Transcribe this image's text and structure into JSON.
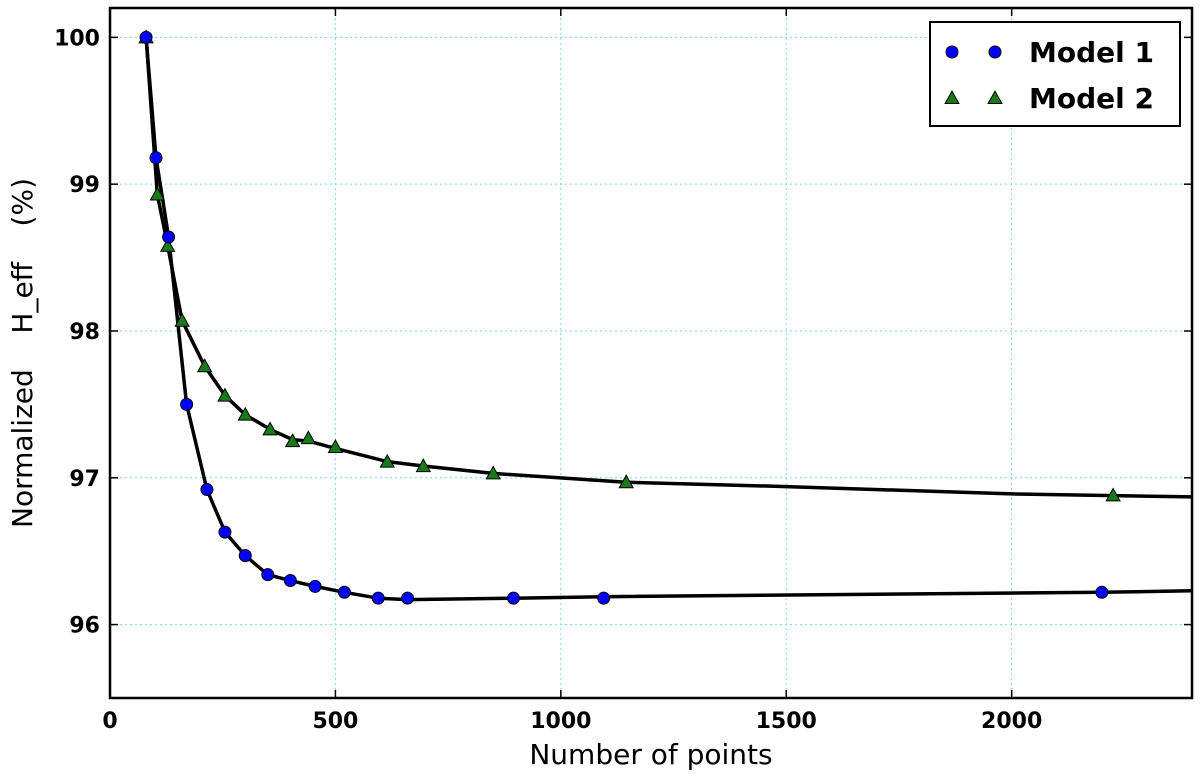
{
  "chart_data": {
    "type": "scatter",
    "xlabel": "Number of points",
    "ylabel": "Normalized    H_eff    (%)",
    "xlim": [
      0,
      2400
    ],
    "ylim": [
      95.5,
      100.2
    ],
    "xticks": [
      0,
      500,
      1000,
      1500,
      2000
    ],
    "yticks": [
      96,
      97,
      98,
      99,
      100
    ],
    "xtick_labels": [
      "0",
      "500",
      "1000",
      "1500",
      "2000"
    ],
    "ytick_labels": [
      "96",
      "97",
      "98",
      "99",
      "100"
    ],
    "grid": true,
    "legend_position": "top-right",
    "series": [
      {
        "name": "Model 1",
        "marker": "circle",
        "color": "#0000ff",
        "points": [
          [
            80,
            100.0
          ],
          [
            102,
            99.18
          ],
          [
            130,
            98.64
          ],
          [
            170,
            97.5
          ],
          [
            215,
            96.92
          ],
          [
            255,
            96.63
          ],
          [
            300,
            96.47
          ],
          [
            350,
            96.34
          ],
          [
            400,
            96.3
          ],
          [
            455,
            96.26
          ],
          [
            520,
            96.22
          ],
          [
            595,
            96.18
          ],
          [
            660,
            96.18
          ],
          [
            895,
            96.18
          ],
          [
            1095,
            96.18
          ],
          [
            2200,
            96.22
          ]
        ],
        "fit": [
          [
            80,
            100.0
          ],
          [
            102,
            99.18
          ],
          [
            130,
            98.64
          ],
          [
            170,
            97.5
          ],
          [
            215,
            96.92
          ],
          [
            255,
            96.63
          ],
          [
            300,
            96.47
          ],
          [
            350,
            96.34
          ],
          [
            400,
            96.3
          ],
          [
            455,
            96.26
          ],
          [
            520,
            96.22
          ],
          [
            595,
            96.18
          ],
          [
            660,
            96.17
          ],
          [
            895,
            96.18
          ],
          [
            1095,
            96.19
          ],
          [
            2200,
            96.22
          ],
          [
            2400,
            96.23
          ]
        ]
      },
      {
        "name": "Model 2",
        "marker": "triangle",
        "color": "#1a7a1a",
        "points": [
          [
            80,
            100.0
          ],
          [
            105,
            98.93
          ],
          [
            128,
            98.58
          ],
          [
            160,
            98.07
          ],
          [
            210,
            97.76
          ],
          [
            255,
            97.56
          ],
          [
            300,
            97.43
          ],
          [
            355,
            97.33
          ],
          [
            405,
            97.25
          ],
          [
            440,
            97.27
          ],
          [
            500,
            97.21
          ],
          [
            615,
            97.11
          ],
          [
            695,
            97.08
          ],
          [
            850,
            97.03
          ],
          [
            1145,
            96.97
          ],
          [
            2225,
            96.88
          ]
        ],
        "fit": [
          [
            80,
            100.0
          ],
          [
            105,
            98.93
          ],
          [
            128,
            98.58
          ],
          [
            160,
            98.07
          ],
          [
            210,
            97.76
          ],
          [
            255,
            97.56
          ],
          [
            300,
            97.43
          ],
          [
            355,
            97.33
          ],
          [
            405,
            97.26
          ],
          [
            440,
            97.25
          ],
          [
            500,
            97.2
          ],
          [
            615,
            97.11
          ],
          [
            695,
            97.08
          ],
          [
            850,
            97.03
          ],
          [
            1145,
            96.97
          ],
          [
            1500,
            96.94
          ],
          [
            2000,
            96.89
          ],
          [
            2400,
            96.87
          ]
        ]
      }
    ]
  }
}
